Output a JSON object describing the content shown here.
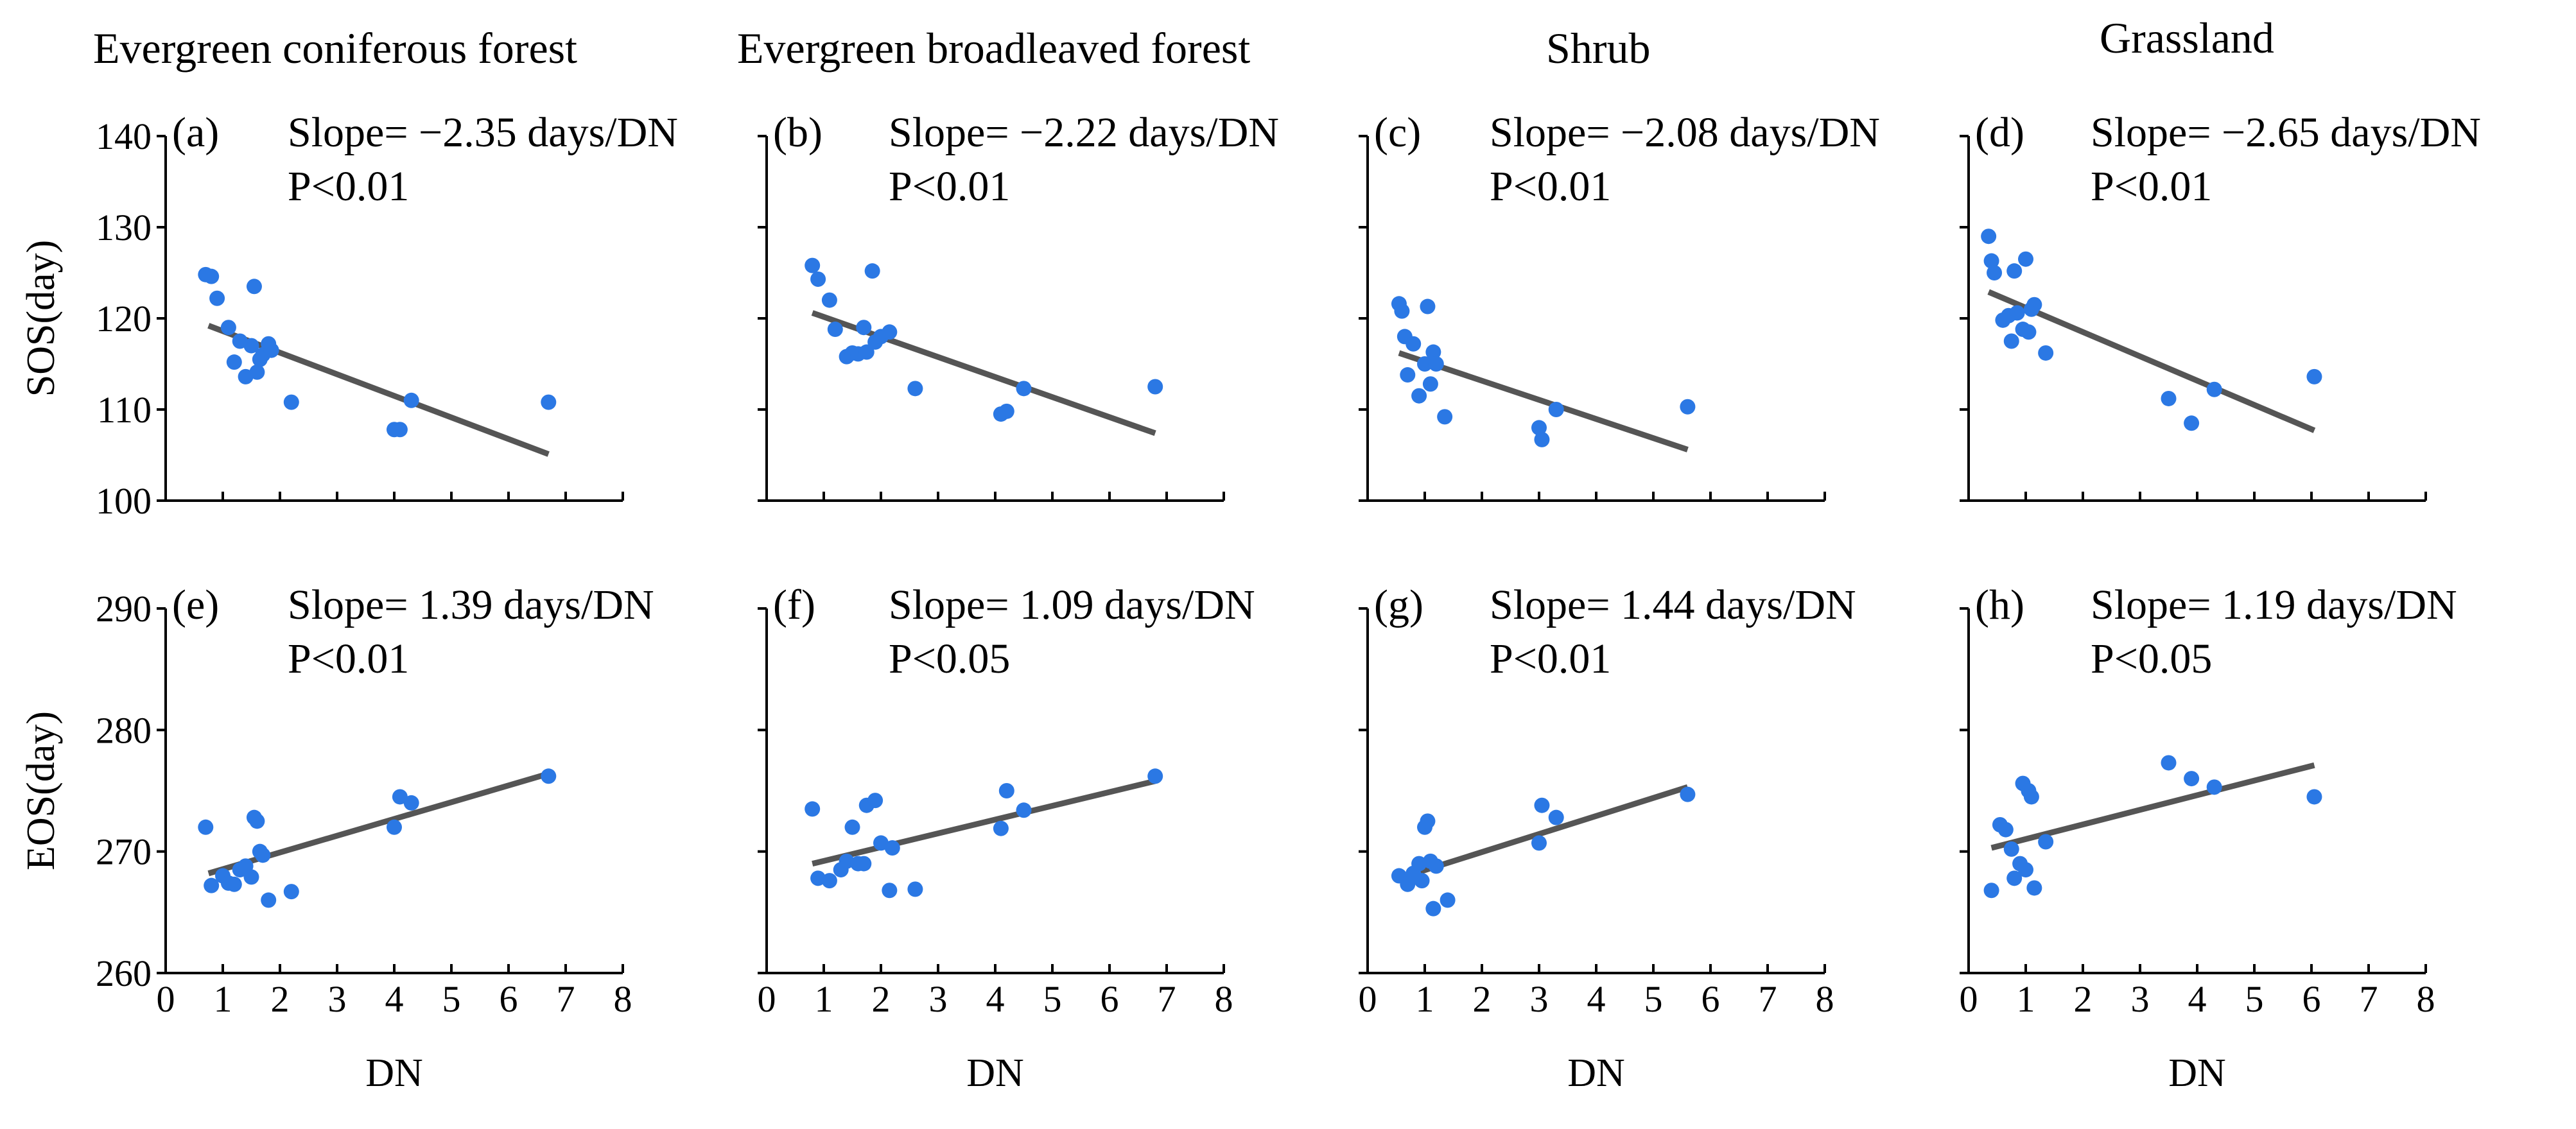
{
  "column_titles": [
    "Evergreen coniferous forest",
    "Evergreen broadleaved forest",
    "Shrub",
    "Grassland"
  ],
  "colors": {
    "point": "#2b78e4",
    "fit_line": "#555555",
    "axis": "#000000"
  },
  "chart_data": [
    {
      "type": "scatter",
      "panel": "a",
      "label": "(a)",
      "column": "Evergreen coniferous forest",
      "row": "SOS",
      "slope_text": "Slope= −2.35 days/DN",
      "p_text": "P<0.01",
      "xlabel": "",
      "ylabel": "SOS(day)",
      "xlim": [
        0,
        8
      ],
      "ylim": [
        100,
        140
      ],
      "xticks": [
        0,
        1,
        2,
        3,
        4,
        5,
        6,
        7,
        8
      ],
      "yticks": [
        100,
        110,
        120,
        130,
        140
      ],
      "points": [
        [
          0.7,
          124.8
        ],
        [
          0.8,
          124.6
        ],
        [
          0.9,
          122.2
        ],
        [
          1.1,
          119
        ],
        [
          1.2,
          115.2
        ],
        [
          1.3,
          117.5
        ],
        [
          1.4,
          113.6
        ],
        [
          1.5,
          117
        ],
        [
          1.55,
          123.5
        ],
        [
          1.6,
          114.1
        ],
        [
          1.65,
          115.5
        ],
        [
          1.7,
          116
        ],
        [
          1.8,
          117.2
        ],
        [
          1.85,
          116.5
        ],
        [
          2.2,
          110.8
        ],
        [
          4.0,
          107.8
        ],
        [
          4.1,
          107.8
        ],
        [
          4.3,
          111
        ],
        [
          6.7,
          110.8
        ]
      ],
      "fit": [
        [
          0.75,
          119.2
        ],
        [
          6.7,
          105.1
        ]
      ]
    },
    {
      "type": "scatter",
      "panel": "b",
      "label": "(b)",
      "column": "Evergreen broadleaved forest",
      "row": "SOS",
      "slope_text": "Slope= −2.22 days/DN",
      "p_text": "P<0.01",
      "xlabel": "",
      "ylabel": "",
      "xlim": [
        0,
        8
      ],
      "ylim": [
        100,
        140
      ],
      "xticks": [
        0,
        1,
        2,
        3,
        4,
        5,
        6,
        7,
        8
      ],
      "yticks": [
        100,
        110,
        120,
        130,
        140
      ],
      "points": [
        [
          0.8,
          125.8
        ],
        [
          0.9,
          124.3
        ],
        [
          1.1,
          122
        ],
        [
          1.2,
          118.8
        ],
        [
          1.4,
          115.8
        ],
        [
          1.5,
          116.2
        ],
        [
          1.6,
          116.1
        ],
        [
          1.7,
          119
        ],
        [
          1.75,
          116.3
        ],
        [
          1.85,
          125.2
        ],
        [
          1.9,
          117.4
        ],
        [
          2.0,
          118
        ],
        [
          2.15,
          118.5
        ],
        [
          2.6,
          112.3
        ],
        [
          4.1,
          109.5
        ],
        [
          4.2,
          109.8
        ],
        [
          4.5,
          112.3
        ],
        [
          6.8,
          112.5
        ]
      ],
      "fit": [
        [
          0.8,
          120.6
        ],
        [
          6.8,
          107.4
        ]
      ]
    },
    {
      "type": "scatter",
      "panel": "c",
      "label": "(c)",
      "column": "Shrub",
      "row": "SOS",
      "slope_text": "Slope= −2.08 days/DN",
      "p_text": "P<0.01",
      "xlabel": "",
      "ylabel": "",
      "xlim": [
        0,
        8
      ],
      "ylim": [
        100,
        140
      ],
      "xticks": [
        0,
        1,
        2,
        3,
        4,
        5,
        6,
        7,
        8
      ],
      "yticks": [
        100,
        110,
        120,
        130,
        140
      ],
      "points": [
        [
          0.55,
          121.6
        ],
        [
          0.6,
          120.8
        ],
        [
          0.65,
          118
        ],
        [
          0.7,
          113.8
        ],
        [
          0.8,
          117.2
        ],
        [
          0.9,
          111.5
        ],
        [
          1.0,
          115
        ],
        [
          1.05,
          121.3
        ],
        [
          1.1,
          112.8
        ],
        [
          1.15,
          116.3
        ],
        [
          1.2,
          115
        ],
        [
          1.35,
          109.2
        ],
        [
          3.0,
          108
        ],
        [
          3.05,
          106.7
        ],
        [
          3.3,
          110
        ],
        [
          5.6,
          110.3
        ]
      ],
      "fit": [
        [
          0.55,
          116.2
        ],
        [
          5.6,
          105.6
        ]
      ]
    },
    {
      "type": "scatter",
      "panel": "d",
      "label": "(d)",
      "column": "Grassland",
      "row": "SOS",
      "slope_text": "Slope= −2.65 days/DN",
      "p_text": "P<0.01",
      "xlabel": "",
      "ylabel": "",
      "xlim": [
        0,
        8
      ],
      "ylim": [
        100,
        140
      ],
      "xticks": [
        0,
        1,
        2,
        3,
        4,
        5,
        6,
        7,
        8
      ],
      "yticks": [
        100,
        110,
        120,
        130,
        140
      ],
      "points": [
        [
          0.35,
          129
        ],
        [
          0.4,
          126.3
        ],
        [
          0.45,
          125
        ],
        [
          0.6,
          119.8
        ],
        [
          0.7,
          120.3
        ],
        [
          0.75,
          117.5
        ],
        [
          0.8,
          125.2
        ],
        [
          0.85,
          120.6
        ],
        [
          0.95,
          118.8
        ],
        [
          1.0,
          126.5
        ],
        [
          1.05,
          118.5
        ],
        [
          1.1,
          121
        ],
        [
          1.15,
          121.5
        ],
        [
          1.35,
          116.2
        ],
        [
          3.5,
          111.2
        ],
        [
          3.9,
          108.5
        ],
        [
          4.3,
          112.2
        ],
        [
          6.05,
          113.6
        ]
      ],
      "fit": [
        [
          0.35,
          122.9
        ],
        [
          6.05,
          107.7
        ]
      ]
    },
    {
      "type": "scatter",
      "panel": "e",
      "label": "(e)",
      "column": "Evergreen coniferous forest",
      "row": "EOS",
      "slope_text": "Slope= 1.39 days/DN",
      "p_text": "P<0.01",
      "xlabel": "DN",
      "ylabel": "EOS(day)",
      "xlim": [
        0,
        8
      ],
      "ylim": [
        260,
        290
      ],
      "xticks": [
        0,
        1,
        2,
        3,
        4,
        5,
        6,
        7,
        8
      ],
      "yticks": [
        260,
        270,
        280,
        290
      ],
      "points": [
        [
          0.7,
          272
        ],
        [
          0.8,
          267.2
        ],
        [
          1.0,
          268
        ],
        [
          1.1,
          267.4
        ],
        [
          1.2,
          267.3
        ],
        [
          1.3,
          268.5
        ],
        [
          1.4,
          268.8
        ],
        [
          1.5,
          267.9
        ],
        [
          1.55,
          272.8
        ],
        [
          1.6,
          272.5
        ],
        [
          1.65,
          270
        ],
        [
          1.7,
          269.7
        ],
        [
          1.8,
          266
        ],
        [
          2.2,
          266.7
        ],
        [
          4.0,
          272
        ],
        [
          4.1,
          274.5
        ],
        [
          4.3,
          274
        ],
        [
          6.7,
          276.2
        ]
      ],
      "fit": [
        [
          0.75,
          268.2
        ],
        [
          6.7,
          276.4
        ]
      ]
    },
    {
      "type": "scatter",
      "panel": "f",
      "label": "(f)",
      "column": "Evergreen broadleaved forest",
      "row": "EOS",
      "slope_text": "Slope= 1.09 days/DN",
      "p_text": "P<0.05",
      "xlabel": "DN",
      "ylabel": "",
      "xlim": [
        0,
        8
      ],
      "ylim": [
        260,
        290
      ],
      "xticks": [
        0,
        1,
        2,
        3,
        4,
        5,
        6,
        7,
        8
      ],
      "yticks": [
        260,
        270,
        280,
        290
      ],
      "points": [
        [
          0.8,
          273.5
        ],
        [
          0.9,
          267.8
        ],
        [
          1.1,
          267.6
        ],
        [
          1.3,
          268.5
        ],
        [
          1.4,
          269.2
        ],
        [
          1.5,
          272
        ],
        [
          1.6,
          269
        ],
        [
          1.7,
          269
        ],
        [
          1.75,
          273.8
        ],
        [
          1.9,
          274.2
        ],
        [
          2.0,
          270.7
        ],
        [
          2.15,
          266.8
        ],
        [
          2.2,
          270.3
        ],
        [
          2.6,
          266.9
        ],
        [
          4.1,
          271.9
        ],
        [
          4.2,
          275
        ],
        [
          4.5,
          273.4
        ],
        [
          6.8,
          276.2
        ]
      ],
      "fit": [
        [
          0.8,
          269
        ],
        [
          6.8,
          275.8
        ]
      ]
    },
    {
      "type": "scatter",
      "panel": "g",
      "label": "(g)",
      "column": "Shrub",
      "row": "EOS",
      "slope_text": "Slope= 1.44 days/DN",
      "p_text": "P<0.01",
      "xlabel": "DN",
      "ylabel": "",
      "xlim": [
        0,
        8
      ],
      "ylim": [
        260,
        290
      ],
      "xticks": [
        0,
        1,
        2,
        3,
        4,
        5,
        6,
        7,
        8
      ],
      "yticks": [
        260,
        270,
        280,
        290
      ],
      "points": [
        [
          0.55,
          268
        ],
        [
          0.7,
          267.3
        ],
        [
          0.8,
          268.2
        ],
        [
          0.9,
          269
        ],
        [
          0.95,
          267.6
        ],
        [
          1.0,
          272
        ],
        [
          1.05,
          272.5
        ],
        [
          1.1,
          269.2
        ],
        [
          1.15,
          265.3
        ],
        [
          1.2,
          268.8
        ],
        [
          1.4,
          266
        ],
        [
          3.0,
          270.7
        ],
        [
          3.05,
          273.8
        ],
        [
          3.3,
          272.8
        ],
        [
          5.6,
          274.7
        ]
      ],
      "fit": [
        [
          0.55,
          267.8
        ],
        [
          5.6,
          275.3
        ]
      ]
    },
    {
      "type": "scatter",
      "panel": "h",
      "label": "(h)",
      "column": "Grassland",
      "row": "EOS",
      "slope_text": "Slope= 1.19 days/DN",
      "p_text": "P<0.05",
      "xlabel": "DN",
      "ylabel": "",
      "xlim": [
        0,
        8
      ],
      "ylim": [
        260,
        290
      ],
      "xticks": [
        0,
        1,
        2,
        3,
        4,
        5,
        6,
        7,
        8
      ],
      "yticks": [
        260,
        270,
        280,
        290
      ],
      "points": [
        [
          0.4,
          266.8
        ],
        [
          0.55,
          272.2
        ],
        [
          0.65,
          271.8
        ],
        [
          0.75,
          270.2
        ],
        [
          0.8,
          267.8
        ],
        [
          0.9,
          269
        ],
        [
          0.95,
          275.6
        ],
        [
          1.0,
          268.5
        ],
        [
          1.05,
          275
        ],
        [
          1.1,
          274.5
        ],
        [
          1.15,
          267
        ],
        [
          1.35,
          270.8
        ],
        [
          3.5,
          277.3
        ],
        [
          3.9,
          276
        ],
        [
          4.3,
          275.3
        ],
        [
          6.05,
          274.5
        ]
      ],
      "fit": [
        [
          0.4,
          270.3
        ],
        [
          6.05,
          277.1
        ]
      ]
    }
  ]
}
